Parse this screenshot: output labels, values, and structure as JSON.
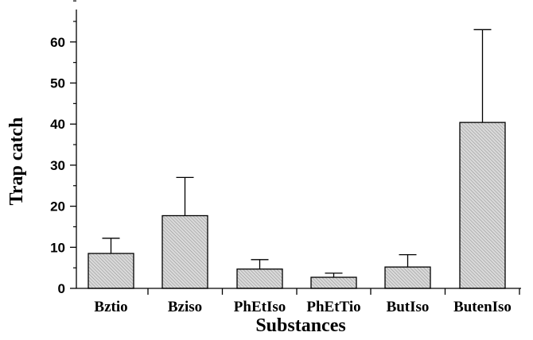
{
  "chart_data": {
    "type": "bar",
    "title": "",
    "xlabel": "Substances",
    "ylabel": "Trap catch",
    "categories": [
      "Bztio",
      "Bziso",
      "PhEtIso",
      "PhEtTio",
      "ButIso",
      "ButenIso"
    ],
    "values": [
      8.5,
      17.7,
      4.7,
      2.7,
      5.2,
      40.4
    ],
    "error_upper": [
      12.2,
      27.0,
      7.0,
      3.7,
      8.2,
      63.0
    ],
    "ylim": [
      0,
      70
    ],
    "yticks": [
      0,
      10,
      20,
      30,
      40,
      50,
      60
    ],
    "yticks_minor_step": 5,
    "grid": false,
    "legend": "none",
    "bar_fill": "#d2d2d2",
    "bar_pattern": "diagonal-hatch"
  }
}
